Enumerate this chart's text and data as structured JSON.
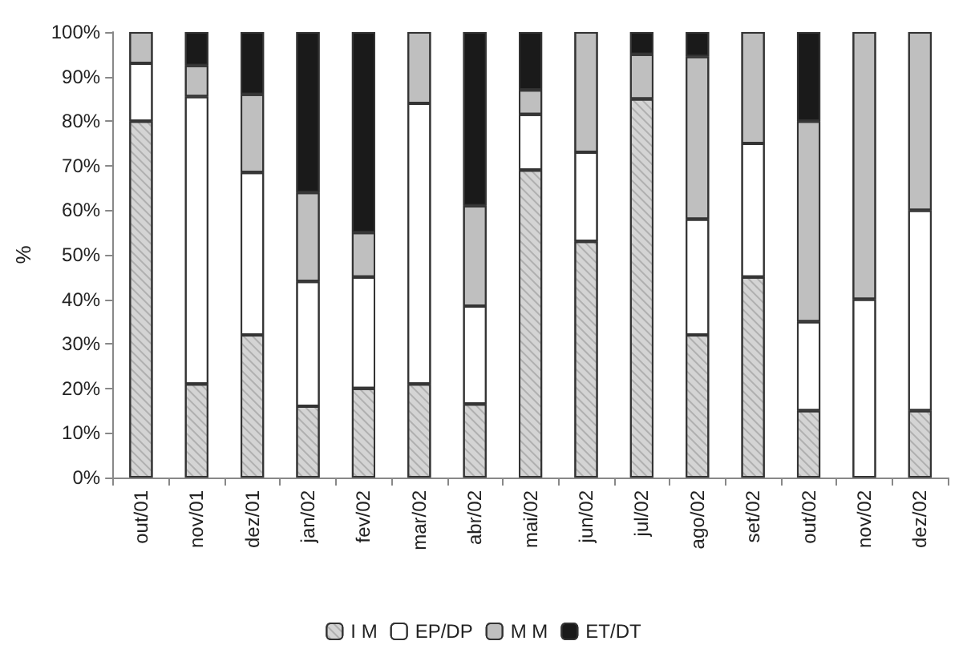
{
  "chart_data": {
    "type": "bar",
    "stacked": true,
    "ylabel": "%",
    "categories": [
      "out/01",
      "nov/01",
      "dez/01",
      "jan/02",
      "fev/02",
      "mar/02",
      "abr/02",
      "mai/02",
      "jun/02",
      "jul/02",
      "ago/02",
      "set/02",
      "out/02",
      "nov/02",
      "dez/02"
    ],
    "series": [
      {
        "name": "I M",
        "color": "#d4d4d4",
        "values": [
          80,
          21,
          32,
          16,
          20,
          21,
          16.5,
          69,
          53,
          85,
          32,
          45,
          15,
          0,
          15
        ]
      },
      {
        "name": "EP/DP",
        "color": "#ffffff",
        "values": [
          13,
          64.5,
          36.5,
          28,
          25,
          63,
          22,
          12.5,
          20,
          0,
          26,
          30,
          20,
          40,
          45
        ]
      },
      {
        "name": "M M",
        "color": "#bfbfbf",
        "values": [
          7,
          7,
          17.5,
          20,
          10,
          16,
          22.5,
          5.5,
          27,
          10,
          36.5,
          25,
          45,
          60,
          40
        ]
      },
      {
        "name": "ET/DT",
        "color": "#1a1a1a",
        "values": [
          0,
          7.5,
          14,
          36,
          45,
          0,
          39,
          13,
          0,
          5,
          5.5,
          0,
          20,
          0,
          0
        ]
      }
    ],
    "ylim": [
      0,
      100
    ],
    "yticks": [
      {
        "value": 0,
        "label": "0%"
      },
      {
        "value": 10,
        "label": "10%"
      },
      {
        "value": 20,
        "label": "20%"
      },
      {
        "value": 30,
        "label": "30%"
      },
      {
        "value": 40,
        "label": "40%"
      },
      {
        "value": 50,
        "label": "50%"
      },
      {
        "value": 60,
        "label": "60%"
      },
      {
        "value": 70,
        "label": "70%"
      },
      {
        "value": 80,
        "label": "80%"
      },
      {
        "value": 90,
        "label": "90%"
      },
      {
        "value": 100,
        "label": "100%"
      }
    ],
    "grid": false,
    "legend": "bottom"
  }
}
